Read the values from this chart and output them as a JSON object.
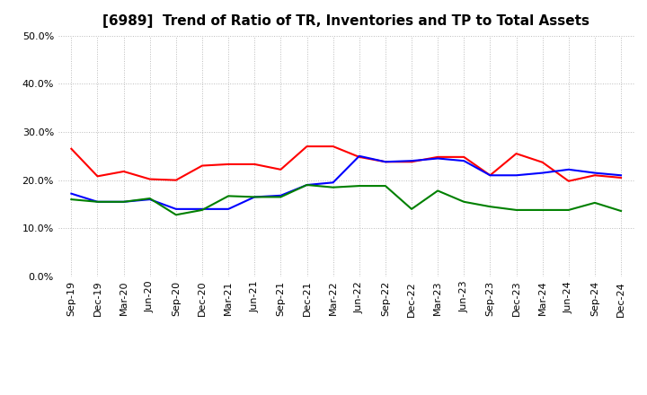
{
  "title": "[6989]  Trend of Ratio of TR, Inventories and TP to Total Assets",
  "x_labels": [
    "Sep-19",
    "Dec-19",
    "Mar-20",
    "Jun-20",
    "Sep-20",
    "Dec-20",
    "Mar-21",
    "Jun-21",
    "Sep-21",
    "Dec-21",
    "Mar-22",
    "Jun-22",
    "Sep-22",
    "Dec-22",
    "Mar-23",
    "Jun-23",
    "Sep-23",
    "Dec-23",
    "Mar-24",
    "Jun-24",
    "Sep-24",
    "Dec-24"
  ],
  "trade_receivables": [
    0.265,
    0.208,
    0.218,
    0.202,
    0.2,
    0.23,
    0.233,
    0.233,
    0.222,
    0.27,
    0.27,
    0.248,
    0.238,
    0.238,
    0.248,
    0.248,
    0.21,
    0.255,
    0.237,
    0.198,
    0.21,
    0.205
  ],
  "inventories": [
    0.172,
    0.155,
    0.155,
    0.16,
    0.14,
    0.14,
    0.14,
    0.165,
    0.168,
    0.19,
    0.195,
    0.25,
    0.238,
    0.24,
    0.245,
    0.24,
    0.21,
    0.21,
    0.215,
    0.222,
    0.215,
    0.21
  ],
  "trade_payables": [
    0.16,
    0.155,
    0.155,
    0.162,
    0.128,
    0.138,
    0.167,
    0.165,
    0.165,
    0.19,
    0.185,
    0.188,
    0.188,
    0.14,
    0.178,
    0.155,
    0.145,
    0.138,
    0.138,
    0.138,
    0.153,
    0.136
  ],
  "colors": {
    "trade_receivables": "#ff0000",
    "inventories": "#0000ff",
    "trade_payables": "#008000"
  },
  "ylim": [
    0.0,
    0.5
  ],
  "yticks": [
    0.0,
    0.1,
    0.2,
    0.3,
    0.4,
    0.5
  ],
  "background_color": "#ffffff",
  "grid_color": "#bbbbbb",
  "title_fontsize": 11,
  "tick_fontsize": 8,
  "legend_fontsize": 9,
  "linewidth": 1.5
}
